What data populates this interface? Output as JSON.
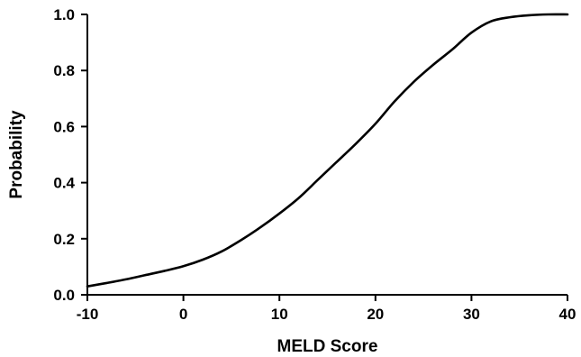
{
  "chart_data": {
    "type": "line",
    "xlabel": "MELD Score",
    "ylabel": "Probability",
    "xlim": [
      -10,
      40
    ],
    "ylim": [
      0.0,
      1.0
    ],
    "x_ticks": [
      -10,
      0,
      10,
      20,
      30,
      40
    ],
    "x_tick_labels": [
      "-10",
      "0",
      "10",
      "20",
      "30",
      "40"
    ],
    "y_ticks": [
      0.0,
      0.2,
      0.4,
      0.6,
      0.8,
      1.0
    ],
    "y_tick_labels": [
      "0.0",
      "0.2",
      "0.4",
      "0.6",
      "0.8",
      "1.0"
    ],
    "grid": false,
    "series": [
      {
        "x": [
          -10,
          -8,
          -6,
          -4,
          -2,
          0,
          2,
          4,
          6,
          8,
          10,
          12,
          14,
          16,
          18,
          20,
          22,
          24,
          26,
          28,
          30,
          32,
          34,
          36,
          38,
          40
        ],
        "values": [
          0.03,
          0.042,
          0.055,
          0.07,
          0.085,
          0.102,
          0.125,
          0.155,
          0.195,
          0.24,
          0.29,
          0.345,
          0.41,
          0.475,
          0.54,
          0.61,
          0.69,
          0.76,
          0.82,
          0.875,
          0.935,
          0.975,
          0.99,
          0.997,
          1.0,
          1.0
        ],
        "color": "#000000"
      }
    ]
  }
}
